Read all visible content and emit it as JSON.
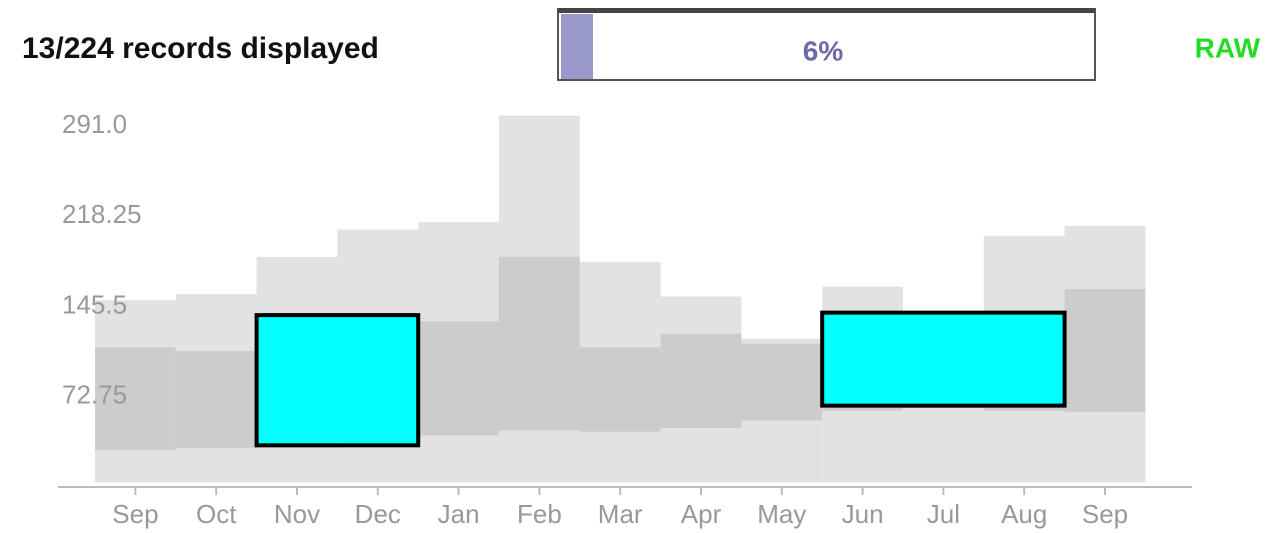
{
  "header": {
    "status": "13/224 records displayed",
    "mode": "RAW"
  },
  "progress": {
    "value": 6,
    "label": "6%"
  },
  "chart": {
    "categories": [
      "Sep",
      "Oct",
      "Nov",
      "Dec",
      "Jan",
      "Feb",
      "Mar",
      "Apr",
      "May",
      "Jun",
      "Jul",
      "Aug",
      "Sep"
    ],
    "ylim": [
      0,
      300
    ],
    "yticks": [
      72.75,
      145.5,
      218.25,
      {
        "value": 291,
        "label": "291.0"
      }
    ],
    "outer": [
      [
        2,
        149
      ],
      [
        2,
        154
      ],
      [
        2,
        184
      ],
      [
        2,
        206
      ],
      [
        2,
        212
      ],
      [
        2,
        298
      ],
      [
        2,
        180
      ],
      [
        2,
        152
      ],
      [
        2,
        118
      ],
      [
        2,
        160
      ],
      [
        2,
        139
      ],
      [
        2,
        201
      ],
      [
        2,
        209
      ]
    ],
    "inner": [
      [
        28,
        111
      ],
      [
        30,
        108
      ],
      [
        30,
        120
      ],
      [
        35,
        130
      ],
      [
        40,
        132
      ],
      [
        44,
        184
      ],
      [
        43,
        111
      ],
      [
        46,
        122
      ],
      [
        52,
        114
      ],
      [
        60,
        120
      ],
      [
        62,
        125
      ],
      [
        60,
        140
      ],
      [
        59,
        158
      ]
    ],
    "selections": [
      {
        "start": 2,
        "end": 3,
        "low": 32,
        "high": 137
      },
      {
        "start": 9,
        "end": 11,
        "low": 64,
        "high": 139
      }
    ]
  }
}
